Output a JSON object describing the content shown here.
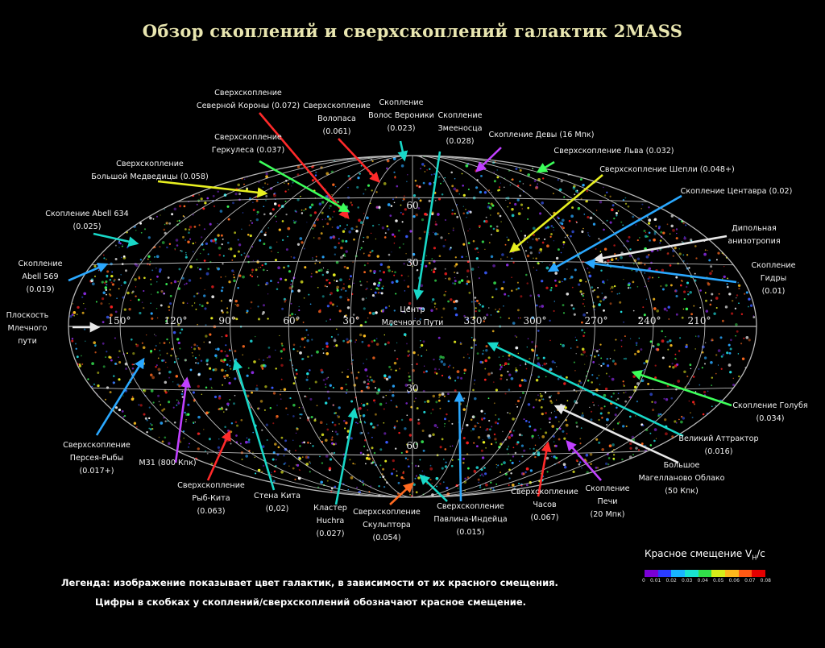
{
  "title": "Обзор скоплений и сверхскоплений галактик 2MASS",
  "legend": {
    "line1": "Легенда: изображение показывает цвет галактик, в зависимости от их красного смещения.",
    "line2": "Цифры в скобках у скоплений/сверхскоплений обозначают красное смещение."
  },
  "scale": {
    "title": "Красное смещение V",
    "title_sub": "H",
    "title_suffix": "/c",
    "ticks": [
      "0",
      "0.01",
      "0.02",
      "0.03",
      "0.04",
      "0.05",
      "0.06",
      "0.07",
      "0.08"
    ],
    "colors": [
      "#7a00d6",
      "#2a3cff",
      "#18b4ff",
      "#19e3d0",
      "#31e04a",
      "#d8ee1a",
      "#ffb81c",
      "#ff5a14",
      "#e30000"
    ]
  },
  "longitudes": [
    "150°",
    "120°",
    "90°",
    "60°",
    "30°",
    "330°",
    "300°",
    "270°",
    "240°",
    "210°"
  ],
  "latitudes": [
    "60",
    "30",
    "30",
    "60"
  ],
  "labels": {
    "corona_borealis": [
      "Сверхскопление",
      "Северной Короны (0.072)"
    ],
    "bootes": [
      "Сверхскопление",
      "Волопаса",
      "(0.061)"
    ],
    "coma": [
      "Скопление",
      "Волос Вероники",
      "(0.023)"
    ],
    "ophiuchus": [
      "Скопление",
      "Змееносца",
      "(0.028)"
    ],
    "virgo": [
      "Скопление Девы (16 Мпк)"
    ],
    "leo": [
      "Сверхскопление Льва (0.032)"
    ],
    "shapley": [
      "Сверхскопление Шепли (0.048+)"
    ],
    "centaurus": [
      "Скопление Центавра (0.02)"
    ],
    "dipole": [
      "Дипольная",
      "анизотропия"
    ],
    "hydra": [
      "Скопление",
      "Гидры",
      "(0.01)"
    ],
    "hercules": [
      "Сверхскопление",
      "Геркулеса (0.037)"
    ],
    "ursa_major": [
      "Сверхскопление",
      "Большой Медведицы (0.058)"
    ],
    "abell634": [
      "Скопление Abell 634",
      "(0.025)"
    ],
    "abell569": [
      "Скопление",
      "Abell 569",
      "(0.019)"
    ],
    "mw_plane": [
      "Плоскость",
      "Млечного",
      "пути"
    ],
    "mw_center": [
      "Центр",
      "Млечного Пути"
    ],
    "columba": [
      "Скопление Голубя",
      "(0.034)"
    ],
    "great_attractor": [
      "Великий Аттрактор",
      "(0.016)"
    ],
    "lmc": [
      "Большое",
      "Магелланово Облако",
      "(50 Кпк)"
    ],
    "fornax": [
      "Скопление",
      "Печи",
      "(20 Мпк)"
    ],
    "horologium": [
      "Сверхскопление",
      "Часов",
      "(0.067)"
    ],
    "pavo_indus": [
      "Сверхскопление",
      "Павлина-Индейца",
      "(0.015)"
    ],
    "sculptor": [
      "Сверхскопление",
      "Скульптора",
      "(0.054)"
    ],
    "huchra": [
      "Кластер",
      "Huchra",
      "(0.027)"
    ],
    "cetus_wall": [
      "Стена Кита",
      "(0,02)"
    ],
    "pisces_cetus": [
      "Сверхскопление",
      "Рыб-Кита",
      "(0.063)"
    ],
    "m31": [
      "M31 (800 Кпк)"
    ],
    "perseus_pisces": [
      "Сверхскопление",
      "Персея-Рыбы",
      "(0.017+)"
    ]
  },
  "colors": {
    "background": "#000000",
    "title": "#e9e6b0",
    "grid": "#d8d8d8"
  }
}
